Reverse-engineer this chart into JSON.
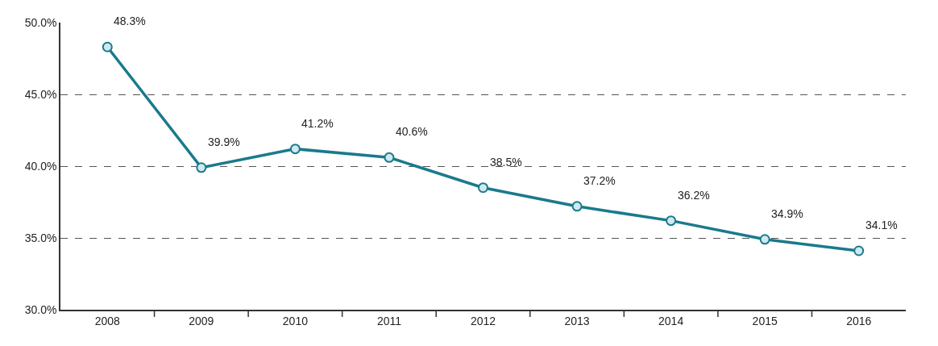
{
  "chart_data": {
    "type": "line",
    "categories": [
      "2008",
      "2009",
      "2010",
      "2011",
      "2012",
      "2013",
      "2014",
      "2015",
      "2016"
    ],
    "series": [
      {
        "color": "#1a7a8c",
        "values": [
          48.3,
          39.9,
          41.2,
          40.6,
          38.5,
          37.2,
          36.2,
          34.9,
          34.1
        ],
        "value_labels": [
          "48.3%",
          "39.9%",
          "41.2%",
          "40.6%",
          "38.5%",
          "37.2%",
          "36.2%",
          "34.9%",
          "34.1%"
        ]
      }
    ],
    "ylim": [
      30,
      50
    ],
    "yticks": [
      {
        "value": 30,
        "label": "30.0%"
      },
      {
        "value": 35,
        "label": "35.0%"
      },
      {
        "value": 40,
        "label": "40.0%"
      },
      {
        "value": 45,
        "label": "45.0%"
      },
      {
        "value": 50,
        "label": "50.0%"
      }
    ],
    "grid": "y",
    "marker": "circle",
    "line_style": "solid"
  }
}
